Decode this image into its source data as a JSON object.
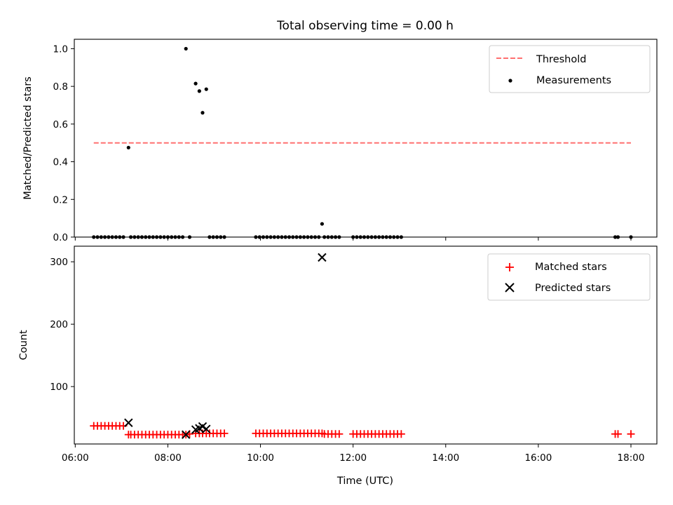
{
  "figure_title": "Total observing time = 0.00 h",
  "colors": {
    "threshold": "#ff7070",
    "matched": "#ff0000",
    "predicted": "#000000",
    "measurements": "#000000"
  },
  "chart_data": [
    {
      "type": "scatter",
      "title": "Total observing time = 0.00 h",
      "xlabel": "",
      "ylabel": "Matched/Predicted stars",
      "x_units": "hours UTC",
      "xlim": [
        5.98,
        18.56
      ],
      "ylim": [
        0,
        1.05
      ],
      "yticks": [
        0.0,
        0.2,
        0.4,
        0.6,
        0.8,
        1.0
      ],
      "ytick_labels": [
        "0.0",
        "0.2",
        "0.4",
        "0.6",
        "0.8",
        "1.0"
      ],
      "legend": {
        "placement": "top-right",
        "entries": [
          "Threshold",
          "Measurements"
        ]
      },
      "threshold": {
        "name": "Threshold",
        "y": 0.5,
        "x_range": [
          6.4,
          18.0
        ],
        "style": "dashed"
      },
      "series": [
        {
          "name": "Measurements",
          "points": [
            [
              6.4,
              0
            ],
            [
              6.48,
              0
            ],
            [
              6.56,
              0
            ],
            [
              6.64,
              0
            ],
            [
              6.72,
              0
            ],
            [
              6.8,
              0
            ],
            [
              6.88,
              0
            ],
            [
              6.96,
              0
            ],
            [
              7.04,
              0
            ],
            [
              7.15,
              0.475
            ],
            [
              7.2,
              0
            ],
            [
              7.28,
              0
            ],
            [
              7.36,
              0
            ],
            [
              7.44,
              0
            ],
            [
              7.52,
              0
            ],
            [
              7.6,
              0
            ],
            [
              7.68,
              0
            ],
            [
              7.76,
              0
            ],
            [
              7.84,
              0
            ],
            [
              7.92,
              0
            ],
            [
              8.0,
              0
            ],
            [
              8.08,
              0
            ],
            [
              8.16,
              0
            ],
            [
              8.24,
              0
            ],
            [
              8.32,
              0
            ],
            [
              8.39,
              1.0
            ],
            [
              8.47,
              0
            ],
            [
              8.6,
              0.815
            ],
            [
              8.68,
              0.775
            ],
            [
              8.75,
              0.66
            ],
            [
              8.83,
              0.785
            ],
            [
              8.9,
              0
            ],
            [
              8.98,
              0
            ],
            [
              9.06,
              0
            ],
            [
              9.14,
              0
            ],
            [
              9.22,
              0
            ],
            [
              9.9,
              0
            ],
            [
              9.98,
              0
            ],
            [
              10.06,
              0
            ],
            [
              10.14,
              0
            ],
            [
              10.22,
              0
            ],
            [
              10.3,
              0
            ],
            [
              10.38,
              0
            ],
            [
              10.46,
              0
            ],
            [
              10.54,
              0
            ],
            [
              10.62,
              0
            ],
            [
              10.7,
              0
            ],
            [
              10.78,
              0
            ],
            [
              10.86,
              0
            ],
            [
              10.94,
              0
            ],
            [
              11.02,
              0
            ],
            [
              11.1,
              0
            ],
            [
              11.18,
              0
            ],
            [
              11.26,
              0
            ],
            [
              11.33,
              0.07
            ],
            [
              11.38,
              0
            ],
            [
              11.46,
              0
            ],
            [
              11.54,
              0
            ],
            [
              11.62,
              0
            ],
            [
              11.7,
              0
            ],
            [
              12.0,
              0
            ],
            [
              12.08,
              0
            ],
            [
              12.16,
              0
            ],
            [
              12.24,
              0
            ],
            [
              12.32,
              0
            ],
            [
              12.4,
              0
            ],
            [
              12.48,
              0
            ],
            [
              12.56,
              0
            ],
            [
              12.64,
              0
            ],
            [
              12.72,
              0
            ],
            [
              12.8,
              0
            ],
            [
              12.88,
              0
            ],
            [
              12.96,
              0
            ],
            [
              13.04,
              0
            ],
            [
              17.66,
              0
            ],
            [
              17.72,
              0
            ],
            [
              18.0,
              0
            ]
          ]
        }
      ]
    },
    {
      "type": "scatter",
      "title": "",
      "xlabel": "Time (UTC)",
      "ylabel": "Count",
      "x_units": "hours UTC",
      "xlim": [
        5.98,
        18.56
      ],
      "ylim": [
        8,
        325
      ],
      "xticks": [
        6,
        8,
        10,
        12,
        14,
        16,
        18
      ],
      "xtick_labels": [
        "06:00",
        "08:00",
        "10:00",
        "12:00",
        "14:00",
        "16:00",
        "18:00"
      ],
      "yticks": [
        100,
        200,
        300
      ],
      "ytick_labels": [
        "100",
        "200",
        "300"
      ],
      "legend": {
        "placement": "top-right",
        "entries": [
          "Matched stars",
          "Predicted stars"
        ]
      },
      "series": [
        {
          "name": "Matched stars",
          "marker": "plus",
          "points": [
            [
              6.4,
              37
            ],
            [
              6.48,
              37
            ],
            [
              6.56,
              37
            ],
            [
              6.64,
              37
            ],
            [
              6.72,
              37
            ],
            [
              6.8,
              37
            ],
            [
              6.88,
              37
            ],
            [
              6.96,
              37
            ],
            [
              7.04,
              37
            ],
            [
              7.15,
              23
            ],
            [
              7.2,
              23
            ],
            [
              7.28,
              23
            ],
            [
              7.36,
              23
            ],
            [
              7.44,
              23
            ],
            [
              7.52,
              23
            ],
            [
              7.6,
              23
            ],
            [
              7.68,
              23
            ],
            [
              7.76,
              23
            ],
            [
              7.84,
              23
            ],
            [
              7.92,
              23
            ],
            [
              8.0,
              23
            ],
            [
              8.08,
              23
            ],
            [
              8.16,
              23
            ],
            [
              8.24,
              23
            ],
            [
              8.32,
              23
            ],
            [
              8.39,
              23
            ],
            [
              8.47,
              24
            ],
            [
              8.6,
              25
            ],
            [
              8.68,
              25
            ],
            [
              8.75,
              25
            ],
            [
              8.83,
              25
            ],
            [
              8.9,
              25
            ],
            [
              8.98,
              25
            ],
            [
              9.06,
              25
            ],
            [
              9.14,
              25
            ],
            [
              9.22,
              25
            ],
            [
              9.9,
              25
            ],
            [
              9.98,
              25
            ],
            [
              10.06,
              25
            ],
            [
              10.14,
              25
            ],
            [
              10.22,
              25
            ],
            [
              10.3,
              25
            ],
            [
              10.38,
              25
            ],
            [
              10.46,
              25
            ],
            [
              10.54,
              25
            ],
            [
              10.62,
              25
            ],
            [
              10.7,
              25
            ],
            [
              10.78,
              25
            ],
            [
              10.86,
              25
            ],
            [
              10.94,
              25
            ],
            [
              11.02,
              25
            ],
            [
              11.1,
              25
            ],
            [
              11.18,
              25
            ],
            [
              11.26,
              25
            ],
            [
              11.33,
              25
            ],
            [
              11.38,
              24
            ],
            [
              11.46,
              24
            ],
            [
              11.54,
              24
            ],
            [
              11.62,
              24
            ],
            [
              11.7,
              24
            ],
            [
              12.0,
              24
            ],
            [
              12.08,
              24
            ],
            [
              12.16,
              24
            ],
            [
              12.24,
              24
            ],
            [
              12.32,
              24
            ],
            [
              12.4,
              24
            ],
            [
              12.48,
              24
            ],
            [
              12.56,
              24
            ],
            [
              12.64,
              24
            ],
            [
              12.72,
              24
            ],
            [
              12.8,
              24
            ],
            [
              12.88,
              24
            ],
            [
              12.96,
              24
            ],
            [
              13.04,
              24
            ],
            [
              17.66,
              24
            ],
            [
              17.72,
              24
            ],
            [
              18.0,
              24
            ]
          ]
        },
        {
          "name": "Predicted stars",
          "marker": "x",
          "points": [
            [
              7.15,
              42
            ],
            [
              8.39,
              23
            ],
            [
              8.6,
              31
            ],
            [
              8.68,
              33
            ],
            [
              8.75,
              36
            ],
            [
              8.83,
              32
            ],
            [
              11.33,
              307
            ]
          ]
        }
      ]
    }
  ]
}
